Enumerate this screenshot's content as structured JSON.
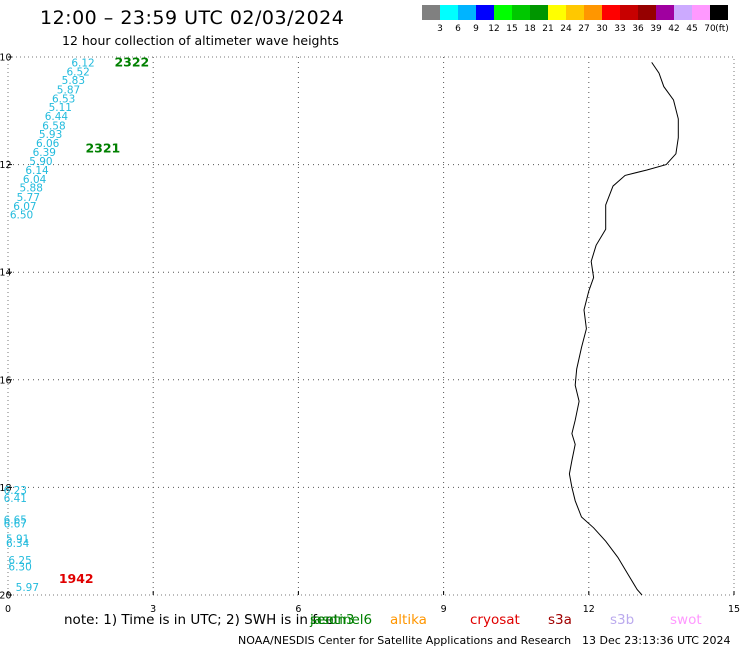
{
  "title": "12:00 – 23:59 UTC 02/03/2024",
  "subtitle": "12 hour collection of altimeter wave heights",
  "legend": {
    "unit": "(ft)",
    "colors": [
      "#808080",
      "#00ffff",
      "#00b4ff",
      "#0000ff",
      "#00ff00",
      "#00c800",
      "#009600",
      "#ffff00",
      "#ffc800",
      "#ff9600",
      "#ff0000",
      "#c80000",
      "#960000",
      "#a000a0",
      "#ccaaff",
      "#ff99ff",
      "#000000"
    ],
    "labels": [
      "3",
      "6",
      "9",
      "12",
      "15",
      "18",
      "21",
      "24",
      "27",
      "30",
      "33",
      "36",
      "39",
      "42",
      "45",
      "70"
    ]
  },
  "axes": {
    "x_ticks": [
      "0",
      "3",
      "6",
      "9",
      "12",
      "15"
    ],
    "y_ticks": [
      "-10",
      "-12",
      "-14",
      "-16",
      "-18",
      "-20"
    ]
  },
  "chart_data": {
    "type": "scatter",
    "xlim": [
      0,
      15
    ],
    "ylim": [
      -20,
      -10
    ],
    "grid": true,
    "tracks": [
      {
        "label": "2322",
        "label_color": "#008000",
        "label_pos": [
          2.2,
          -10.1
        ],
        "points": [
          {
            "x": 1.55,
            "y": -10.1,
            "v": "6.12"
          },
          {
            "x": 1.45,
            "y": -10.27,
            "v": "6.52"
          },
          {
            "x": 1.35,
            "y": -10.43,
            "v": "5.83"
          },
          {
            "x": 1.25,
            "y": -10.6,
            "v": "5.87"
          },
          {
            "x": 1.15,
            "y": -10.77,
            "v": "6.53"
          },
          {
            "x": 1.08,
            "y": -10.93,
            "v": "5.11"
          },
          {
            "x": 1.0,
            "y": -11.1,
            "v": "6.44"
          },
          {
            "x": 0.95,
            "y": -11.27,
            "v": "6.58"
          }
        ]
      },
      {
        "label": "2321",
        "label_color": "#008000",
        "label_pos": [
          1.6,
          -11.7
        ],
        "points": [
          {
            "x": 0.88,
            "y": -11.43,
            "v": "5.93"
          },
          {
            "x": 0.82,
            "y": -11.6,
            "v": "6.06"
          },
          {
            "x": 0.75,
            "y": -11.77,
            "v": "6.39"
          },
          {
            "x": 0.68,
            "y": -11.93,
            "v": "5.90"
          },
          {
            "x": 0.6,
            "y": -12.1,
            "v": "6.14"
          },
          {
            "x": 0.55,
            "y": -12.27,
            "v": "6.04"
          },
          {
            "x": 0.48,
            "y": -12.43,
            "v": "5.88"
          },
          {
            "x": 0.42,
            "y": -12.6,
            "v": "5.77"
          },
          {
            "x": 0.35,
            "y": -12.77,
            "v": "6.07"
          },
          {
            "x": 0.28,
            "y": -12.93,
            "v": "6.50"
          }
        ]
      },
      {
        "label": "1942",
        "label_color": "#e00000",
        "label_pos": [
          1.05,
          -19.7
        ],
        "points": [
          {
            "x": 0.15,
            "y": -18.05,
            "v": "6.23"
          },
          {
            "x": 0.15,
            "y": -18.2,
            "v": "6.41"
          },
          {
            "x": 0.15,
            "y": -18.6,
            "v": "6.65"
          },
          {
            "x": 0.15,
            "y": -18.67,
            "v": "6.67"
          },
          {
            "x": 0.2,
            "y": -18.95,
            "v": "5.91"
          },
          {
            "x": 0.2,
            "y": -19.03,
            "v": "6.34"
          },
          {
            "x": 0.25,
            "y": -19.35,
            "v": "6.25"
          },
          {
            "x": 0.25,
            "y": -19.47,
            "v": "6.30"
          },
          {
            "x": 0.4,
            "y": -19.85,
            "v": "5.97"
          }
        ]
      }
    ]
  },
  "coastline": [
    [
      13.3,
      -10.1
    ],
    [
      13.45,
      -10.3
    ],
    [
      13.55,
      -10.55
    ],
    [
      13.75,
      -10.8
    ],
    [
      13.85,
      -11.15
    ],
    [
      13.85,
      -11.5
    ],
    [
      13.8,
      -11.8
    ],
    [
      13.6,
      -12.0
    ],
    [
      13.2,
      -12.1
    ],
    [
      12.75,
      -12.2
    ],
    [
      12.5,
      -12.4
    ],
    [
      12.35,
      -12.75
    ],
    [
      12.35,
      -13.2
    ],
    [
      12.15,
      -13.5
    ],
    [
      12.05,
      -13.8
    ],
    [
      12.1,
      -14.1
    ],
    [
      12.0,
      -14.35
    ],
    [
      11.9,
      -14.7
    ],
    [
      11.95,
      -15.05
    ],
    [
      11.85,
      -15.4
    ],
    [
      11.75,
      -15.8
    ],
    [
      11.72,
      -16.1
    ],
    [
      11.8,
      -16.4
    ],
    [
      11.72,
      -16.75
    ],
    [
      11.65,
      -17.0
    ],
    [
      11.72,
      -17.2
    ],
    [
      11.65,
      -17.5
    ],
    [
      11.6,
      -17.75
    ],
    [
      11.65,
      -18.0
    ],
    [
      11.72,
      -18.25
    ],
    [
      11.85,
      -18.55
    ],
    [
      12.1,
      -18.75
    ],
    [
      12.35,
      -19.0
    ],
    [
      12.6,
      -19.3
    ],
    [
      12.8,
      -19.6
    ],
    [
      13.0,
      -19.9
    ],
    [
      13.1,
      -20.0
    ]
  ],
  "satellites": [
    {
      "name": "jason3",
      "color": "#008000"
    },
    {
      "name": "sentinel6",
      "color": "#008000"
    },
    {
      "name": "altika",
      "color": "#ff9600"
    },
    {
      "name": "cryosat",
      "color": "#e00000"
    },
    {
      "name": "s3a",
      "color": "#a00000"
    },
    {
      "name": "s3b",
      "color": "#bbaaee"
    },
    {
      "name": "swot",
      "color": "#ff99ff"
    }
  ],
  "note": "note: 1) Time is in UTC; 2) SWH is in feet",
  "credits": "NOAA/NESDIS Center for Satellite Applications and Research",
  "timestamp": "13 Dec 23:13:36 UTC 2024"
}
